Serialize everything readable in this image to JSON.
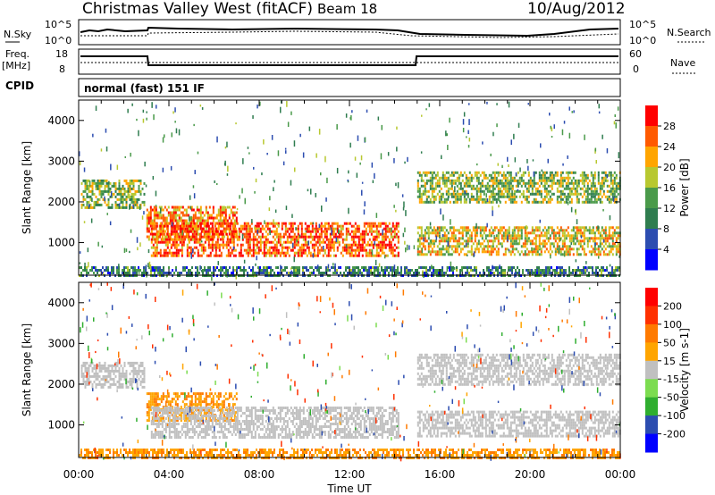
{
  "header": {
    "station": "Christmas Valley West (fitACF)",
    "beam": "Beam 18",
    "date": "10/Aug/2012"
  },
  "strip_labels": {
    "nsky": "N.Sky",
    "nsky_ticks": [
      "10^5",
      "10^0"
    ],
    "nsearch": "N.Search",
    "nsearch_ticks": [
      "10^5",
      "10^0"
    ],
    "freq": "Freq.",
    "freq_unit": "[MHz]",
    "freq_ticks": [
      "18",
      "8"
    ],
    "nave": "Nave",
    "nave_ticks": [
      "60",
      "0"
    ],
    "cpid": "CPID",
    "cpid_value": "normal (fast) 151 IF"
  },
  "chart_data": [
    {
      "type": "heatmap",
      "name": "power",
      "xlabel": "",
      "ylabel": "Slant Range [km]",
      "xlim": [
        "00:00",
        "24:00"
      ],
      "ylim": [
        200,
        4500
      ],
      "yticks": [
        "1000",
        "2000",
        "3000",
        "4000"
      ],
      "colorbar": {
        "label": "Power [dB]",
        "ticks": [
          "4",
          "8",
          "12",
          "16",
          "20",
          "24",
          "28"
        ],
        "colors": [
          "#0000ff",
          "#2c4db0",
          "#2f7d4f",
          "#4a9a4a",
          "#b8c830",
          "#ffa500",
          "#ff5a00",
          "#ff0000"
        ]
      },
      "bands": [
        {
          "t0": 0.1,
          "t1": 2.9,
          "r0": 1850,
          "r1": 2550,
          "level": 16
        },
        {
          "t0": 3.0,
          "t1": 7.0,
          "r0": 1050,
          "r1": 1900,
          "level": 24
        },
        {
          "t0": 3.2,
          "t1": 14.2,
          "r0": 650,
          "r1": 1500,
          "level": 26
        },
        {
          "t0": 15.0,
          "t1": 24.0,
          "r0": 2000,
          "r1": 2750,
          "level": 16
        },
        {
          "t0": 15.0,
          "t1": 24.0,
          "r0": 700,
          "r1": 1400,
          "level": 20
        },
        {
          "t0": 0.0,
          "t1": 24.0,
          "r0": 220,
          "r1": 420,
          "level": 10
        }
      ]
    },
    {
      "type": "heatmap",
      "name": "velocity",
      "xlabel": "Time UT",
      "ylabel": "Slant Range [km]",
      "xlim": [
        "00:00",
        "24:00"
      ],
      "ylim": [
        200,
        4500
      ],
      "xticks": [
        "00:00",
        "04:00",
        "08:00",
        "12:00",
        "16:00",
        "20:00",
        "00:00"
      ],
      "yticks": [
        "1000",
        "2000",
        "3000",
        "4000"
      ],
      "colorbar": {
        "label": "Velocity [m s-1]",
        "ticks": [
          "200",
          "100",
          "50",
          "15",
          "-15",
          "-50",
          "-100",
          "-200"
        ],
        "colors": [
          "#0000ff",
          "#2c4db0",
          "#2fae2f",
          "#7cdc50",
          "#c0c0c0",
          "#ffa500",
          "#ff7a00",
          "#ff3000",
          "#ff0000"
        ]
      },
      "bands": [
        {
          "t0": 0.1,
          "t1": 2.9,
          "r0": 1950,
          "r1": 2550,
          "level": 0
        },
        {
          "t0": 3.0,
          "t1": 7.0,
          "r0": 1100,
          "r1": 1800,
          "level": -30
        },
        {
          "t0": 3.2,
          "t1": 14.2,
          "r0": 700,
          "r1": 1450,
          "level": 0
        },
        {
          "t0": 15.0,
          "t1": 24.0,
          "r0": 2000,
          "r1": 2750,
          "level": 0
        },
        {
          "t0": 15.0,
          "t1": 24.0,
          "r0": 700,
          "r1": 1350,
          "level": 0
        },
        {
          "t0": 0.0,
          "t1": 24.0,
          "r0": 220,
          "r1": 420,
          "level": -30
        }
      ]
    }
  ]
}
